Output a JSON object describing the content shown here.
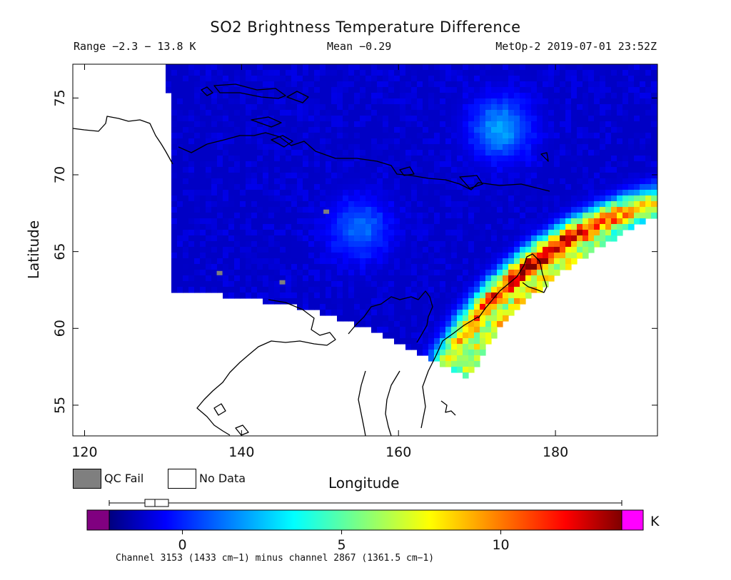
{
  "header": {
    "title": "SO2 Brightness Temperature Difference",
    "range_text": "Range −2.3 − 13.8 K",
    "mean_text": "Mean −0.29",
    "satellite_text": "MetOp-2 2019-07-01 23:52Z"
  },
  "legend": {
    "qc_fail_label": "QC Fail",
    "qc_fail_color": "#7f7f7f",
    "no_data_label": "No Data",
    "no_data_color": "#ffffff"
  },
  "colorbar": {
    "unit": "K",
    "caption": "Channel 3153 (1433 cm−1) minus channel 2867 (1361.5 cm−1)",
    "ticks": [
      0,
      5,
      10
    ],
    "range": [
      -2.3,
      13.8
    ],
    "under_color": "#800080",
    "over_color": "#ff00ff",
    "colormap": "jet",
    "boxplot": {
      "min": -2.3,
      "q1": -1.2,
      "median": -0.6,
      "q3": 0.3,
      "max": 13.8
    }
  },
  "chart_data": {
    "type": "heatmap",
    "title": "SO2 Brightness Temperature Difference",
    "xlabel": "Longitude",
    "ylabel": "Latitude",
    "xlim": [
      118.5,
      193
    ],
    "ylim": [
      53,
      77.2
    ],
    "xticks": [
      120,
      140,
      160,
      180
    ],
    "yticks": [
      55,
      60,
      65,
      70,
      75
    ],
    "value_range": [
      -2.3,
      13.8
    ],
    "mean": -0.29,
    "units": "K",
    "background_value": -1.2,
    "features": [
      {
        "name": "volcanic SO2 plume band",
        "lon": 178,
        "lat": 64.5,
        "peak_value": 13.8
      },
      {
        "name": "moderate plume band",
        "lon": 175,
        "lat": 61.5,
        "peak_value": 9
      },
      {
        "name": "light blue patch",
        "lon": 173,
        "lat": 73,
        "peak_value": 2.5
      },
      {
        "name": "light blue patch",
        "lon": 155,
        "lat": 66.5,
        "peak_value": 1.5
      }
    ],
    "qc_fail_pixels": [
      {
        "lon": 150.8,
        "lat": 67.6
      },
      {
        "lon": 137.2,
        "lat": 63.6
      },
      {
        "lon": 145.2,
        "lat": 63.0
      }
    ]
  }
}
